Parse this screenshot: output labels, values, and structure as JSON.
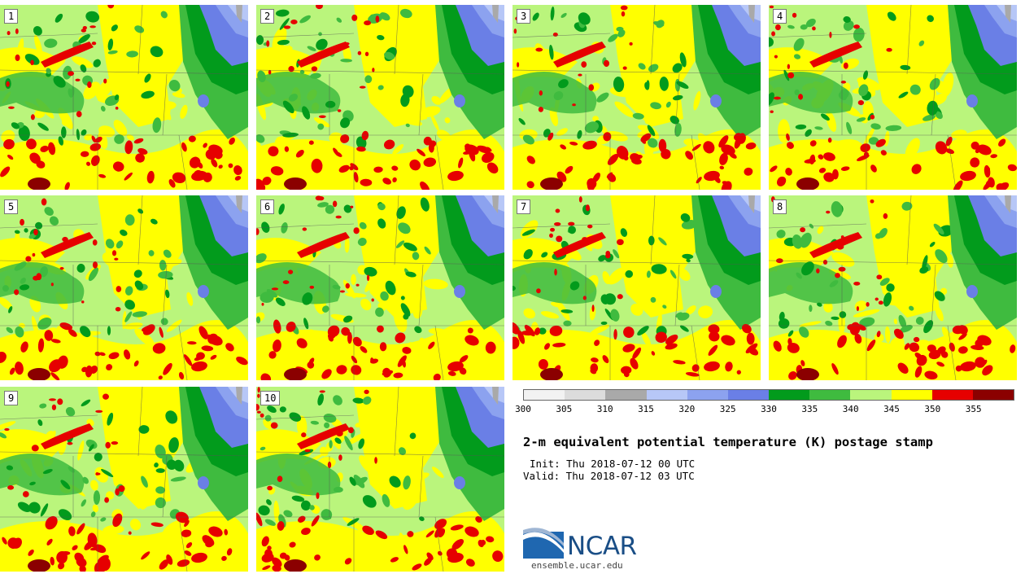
{
  "panels": [
    {
      "label": "1"
    },
    {
      "label": "2"
    },
    {
      "label": "3"
    },
    {
      "label": "4"
    },
    {
      "label": "5"
    },
    {
      "label": "6"
    },
    {
      "label": "7"
    },
    {
      "label": "8"
    },
    {
      "label": "9"
    },
    {
      "label": "10"
    }
  ],
  "legend": {
    "levels": [
      "300",
      "305",
      "310",
      "315",
      "320",
      "325",
      "330",
      "335",
      "340",
      "345",
      "350",
      "355"
    ],
    "colors": [
      "#f2f2f2",
      "#dcdcdc",
      "#a9a9a9",
      "#b7c7f7",
      "#8ca2ef",
      "#6a7fe6",
      "#029b1c",
      "#3fbb3f",
      "#baf57c",
      "#ffff00",
      "#e60000",
      "#8b0000"
    ]
  },
  "title": "2-m equivalent potential temperature (K) postage stamp",
  "init": "Init: Thu 2018-07-12 00 UTC",
  "valid": "Valid: Thu 2018-07-12 03 UTC",
  "logo_text": "NCAR",
  "site": "ensemble.ucar.edu"
}
